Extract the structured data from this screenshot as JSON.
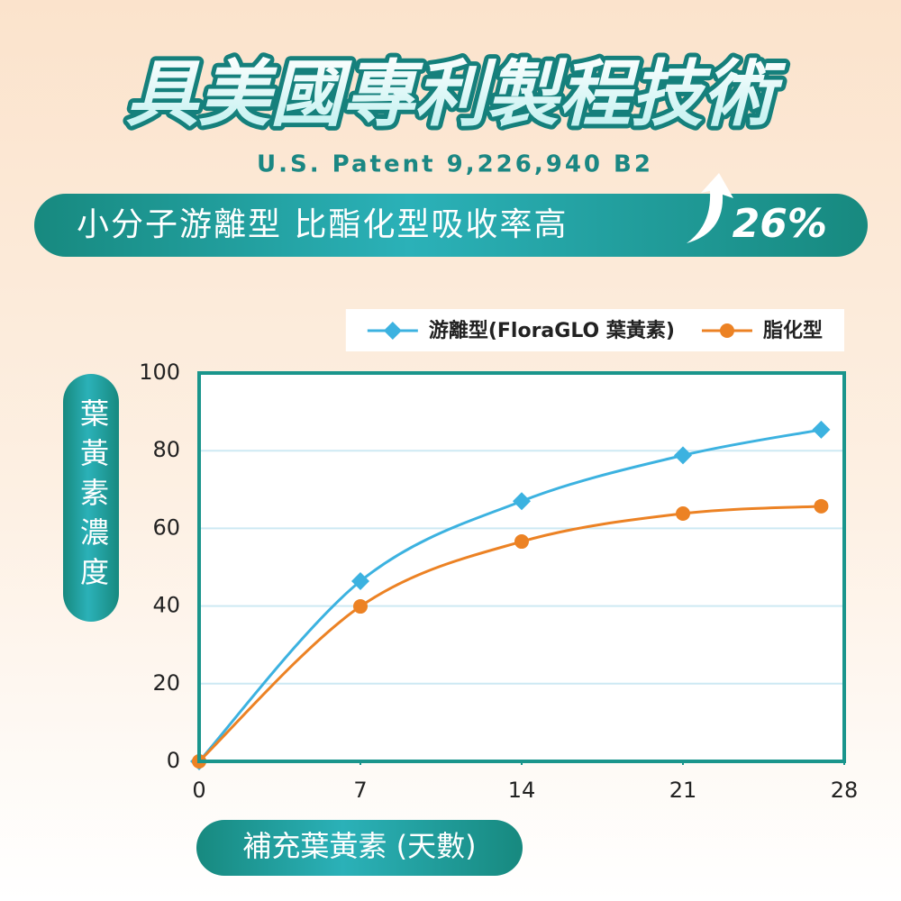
{
  "chart_data": {
    "type": "line",
    "title": "具美國專利製程技術",
    "subtitle": "U.S. Patent 9,226,940 B2",
    "headline": "小分子游離型 比酯化型吸收率高",
    "headline_value": "26%",
    "x_label": "補充葉黃素 (天數)",
    "y_label": "葉黃素濃度",
    "x": [
      0,
      7,
      14,
      21,
      27
    ],
    "xlim": [
      0,
      28
    ],
    "xticks": [
      0,
      7,
      14,
      21,
      28
    ],
    "ylim": [
      0,
      100
    ],
    "yticks": [
      0,
      20,
      40,
      60,
      80,
      100
    ],
    "grid": true,
    "legend": "top-right",
    "series": [
      {
        "name": "游離型(FloraGLO 葉黃素)",
        "color": "#3cb2e0",
        "marker": "diamond",
        "values": [
          0,
          46.4,
          67,
          78.8,
          85.4
        ]
      },
      {
        "name": "脂化型",
        "color": "#ec8224",
        "marker": "circle",
        "values": [
          0,
          39.9,
          56.6,
          63.8,
          65.7
        ]
      }
    ]
  }
}
